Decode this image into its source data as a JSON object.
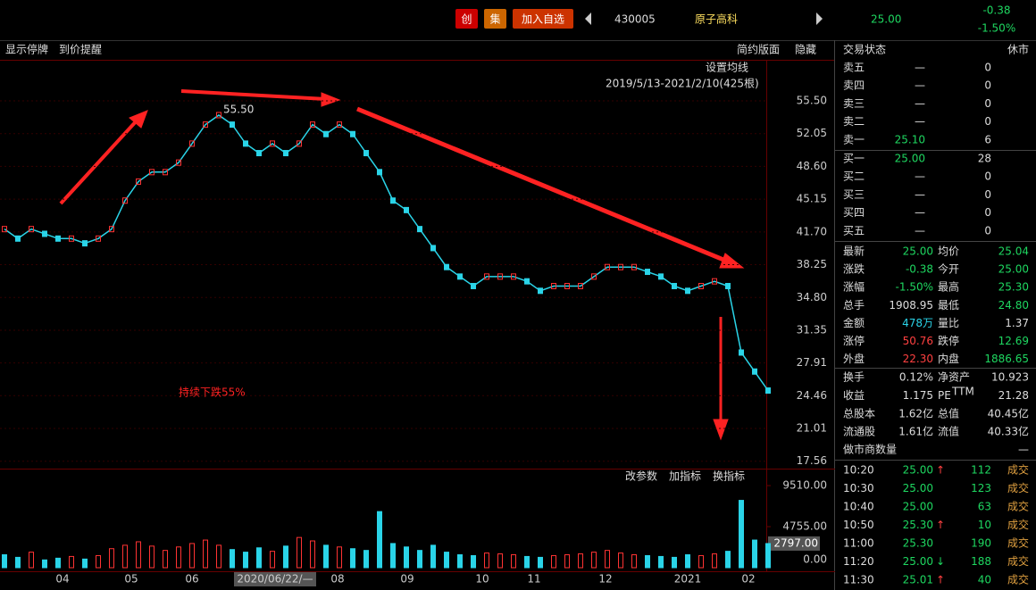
{
  "header": {
    "buttons": [
      "创",
      "集",
      "加入自选"
    ],
    "code": "430005",
    "name": "原子高科",
    "price": "25.00",
    "change": "-0.38",
    "change_pct": "-1.50%"
  },
  "toolbar": {
    "left": [
      "显示停牌",
      "到价提醒"
    ],
    "right": [
      "简约版面",
      "隐藏"
    ]
  },
  "price": {
    "ma_setting": "设置均线",
    "range": "2019/5/13-2021/2/10(425根)",
    "high_label": "55.50",
    "ylim": [
      16.78,
      59.73
    ],
    "yticks": [
      {
        "value": 55.5,
        "label": "55.50"
      },
      52.05,
      {
        "value": 48.6,
        "label": "48.60"
      },
      45.15,
      {
        "value": 41.7,
        "label": "41.70"
      },
      38.25,
      {
        "value": 34.8,
        "label": "34.80"
      },
      31.35,
      27.91,
      24.46,
      21.01,
      17.56
    ],
    "close": [
      42,
      41,
      42,
      41.5,
      41,
      41,
      40.5,
      41,
      42,
      45,
      47,
      48,
      48,
      49,
      51,
      53,
      54,
      53,
      51,
      50,
      51,
      50,
      51,
      53,
      52,
      53,
      52,
      50,
      48,
      45,
      44,
      42,
      40,
      38,
      37,
      36,
      37,
      37,
      37,
      36.5,
      35.5,
      36,
      36,
      36,
      37,
      38,
      38,
      38,
      37.5,
      37,
      36,
      35.5,
      36,
      36.5,
      36,
      29,
      27,
      25
    ],
    "annotation": "持续下跌55%"
  },
  "volume": {
    "tools": [
      "改参数",
      "加指标",
      "换指标"
    ],
    "ylim": [
      0,
      11478
    ],
    "yticks": [
      {
        "value": 9510,
        "label": "9510.00"
      },
      {
        "value": 4755,
        "label": "4755.00"
      },
      {
        "value": 0,
        "label": "0.00"
      }
    ],
    "current": {
      "value": 2797,
      "label": "2797.00"
    },
    "values": [
      1500,
      1200,
      1800,
      900,
      1100,
      1300,
      1000,
      1400,
      2200,
      2600,
      3000,
      2500,
      2000,
      2400,
      2800,
      3200,
      2600,
      2100,
      1800,
      2300,
      1900,
      2500,
      3500,
      3100,
      2600,
      2400,
      2200,
      2000,
      6500,
      2800,
      2400,
      2000,
      2600,
      1800,
      1500,
      1400,
      1700,
      1600,
      1500,
      1300,
      1200,
      1400,
      1500,
      1600,
      1800,
      2000,
      1700,
      1500,
      1400,
      1300,
      1200,
      1500,
      1400,
      1600,
      1900,
      7800,
      3200,
      2797
    ]
  },
  "xaxis": [
    "04",
    "05",
    "06",
    "2020/06/22/—",
    "08",
    "09",
    "10",
    "11",
    "12",
    "2021",
    "02"
  ],
  "panel": {
    "status": [
      "交易状态",
      "休市"
    ],
    "asks": [
      [
        "卖五",
        "—",
        "0"
      ],
      [
        "卖四",
        "—",
        "0"
      ],
      [
        "卖三",
        "—",
        "0"
      ],
      [
        "卖二",
        "—",
        "0"
      ],
      [
        "卖一",
        "25.10",
        "6"
      ]
    ],
    "bids": [
      [
        "买一",
        "25.00",
        "28"
      ],
      [
        "买二",
        "—",
        "0"
      ],
      [
        "买三",
        "—",
        "0"
      ],
      [
        "买四",
        "—",
        "0"
      ],
      [
        "买五",
        "—",
        "0"
      ]
    ],
    "stats": [
      [
        "最新",
        "25.00",
        "均价",
        "25.04"
      ],
      [
        "涨跌",
        "-0.38",
        "今开",
        "25.00"
      ],
      [
        "涨幅",
        "-1.50%",
        "最高",
        "25.30"
      ],
      [
        "总手",
        "1908.95",
        "最低",
        "24.80"
      ],
      [
        "金额",
        "478万",
        "量比",
        "1.37"
      ],
      [
        "涨停",
        "50.76",
        "跌停",
        "12.69"
      ],
      [
        "外盘",
        "22.30",
        "内盘",
        "1886.65"
      ]
    ],
    "stats2": [
      [
        "换手",
        "0.12%",
        "净资产",
        "10.923"
      ],
      [
        "收益",
        "1.175",
        "PE",
        "21.28"
      ],
      [
        "总股本",
        "1.62亿",
        "总值",
        "40.45亿"
      ],
      [
        "流通股",
        "1.61亿",
        "流值",
        "40.33亿"
      ]
    ],
    "pe_sup": "TTM",
    "market_makers": [
      "做市商数量",
      "—"
    ],
    "trades": [
      [
        "10:20",
        "25.00",
        "↑",
        "112",
        "成交"
      ],
      [
        "10:30",
        "25.00",
        "",
        "123",
        "成交"
      ],
      [
        "10:40",
        "25.00",
        "",
        "63",
        "成交"
      ],
      [
        "10:50",
        "25.30",
        "↑",
        "10",
        "成交"
      ],
      [
        "11:00",
        "25.30",
        "",
        "190",
        "成交"
      ],
      [
        "11:20",
        "25.00",
        "↓",
        "188",
        "成交"
      ],
      [
        "11:30",
        "25.01",
        "↑",
        "40",
        "成交"
      ]
    ]
  }
}
